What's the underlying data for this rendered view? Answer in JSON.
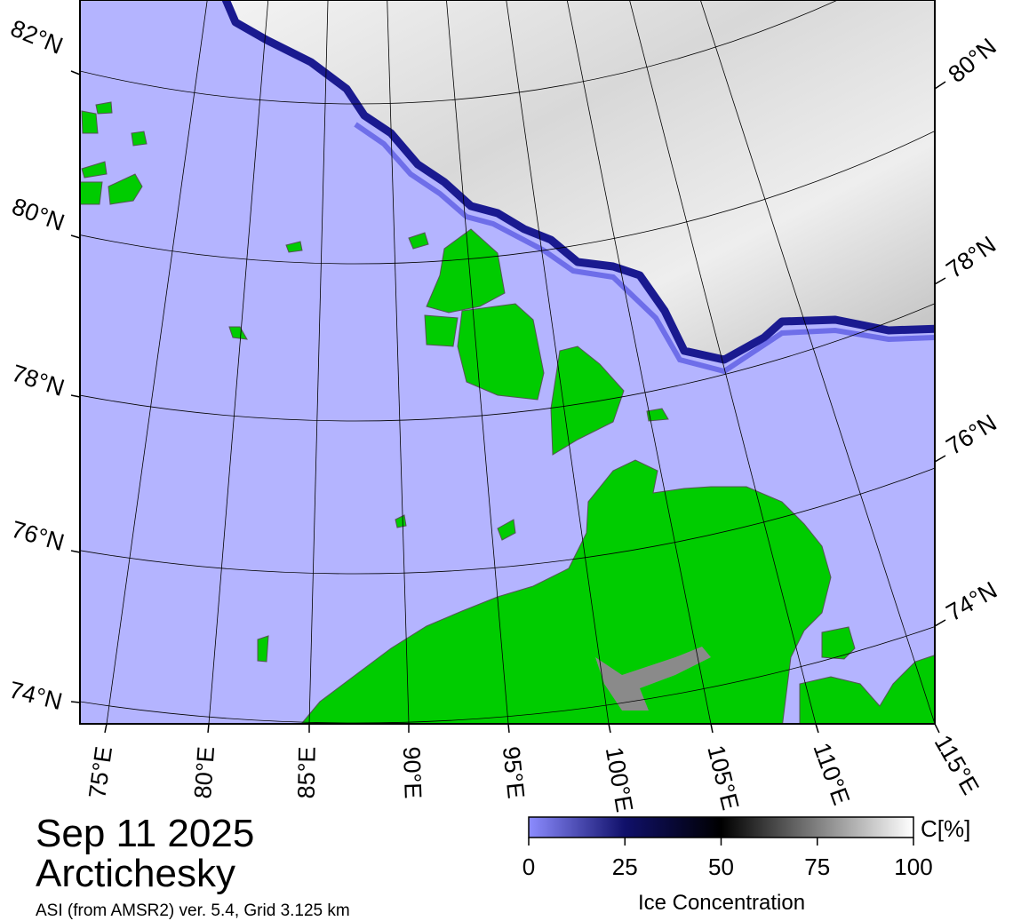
{
  "header": {
    "date": "Sep 11 2025",
    "region": "Arctichesky",
    "source": "ASI (from AMSR2) ver. 5.4,  Grid 3.125 km"
  },
  "map": {
    "lat_labels_left": [
      "82°N",
      "80°N",
      "78°N",
      "76°N",
      "74°N"
    ],
    "lat_labels_right": [
      "80°N",
      "78°N",
      "76°N",
      "74°N"
    ],
    "lon_labels": [
      "75°E",
      "80°E",
      "85°E",
      "90°E",
      "95°E",
      "100°E",
      "105°E",
      "110°E",
      "115°E"
    ]
  },
  "colorbar": {
    "label": "Ice Concentration",
    "unit": "C[%]",
    "lim": [
      0,
      100
    ],
    "ticks": [
      0,
      25,
      50,
      75,
      100
    ]
  }
}
